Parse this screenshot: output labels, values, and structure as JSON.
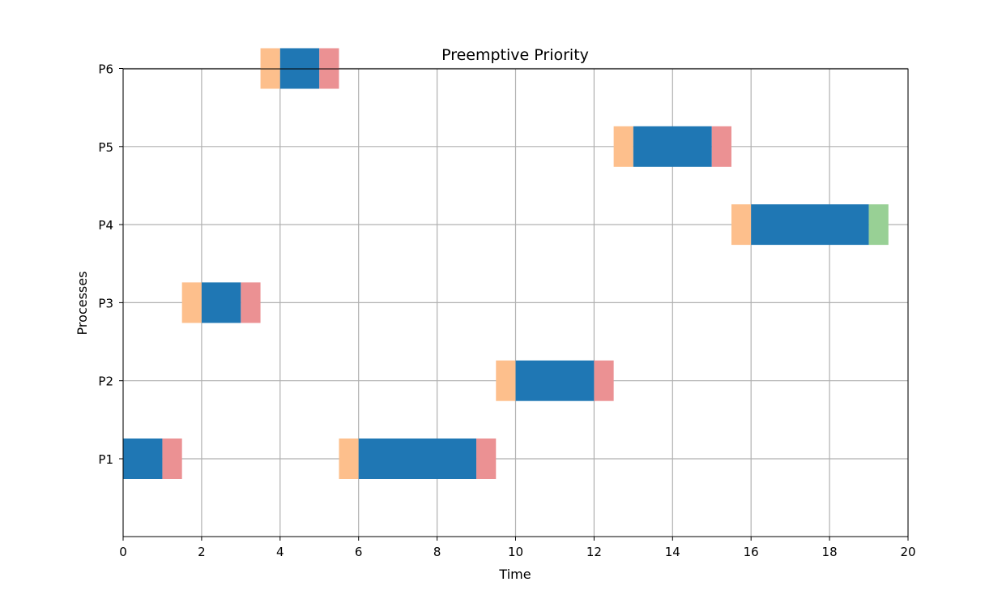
{
  "chart_data": {
    "type": "gantt",
    "title": "Preemptive Priority",
    "xlabel": "Time",
    "ylabel": "Processes",
    "xlim": [
      0,
      20
    ],
    "xticks": [
      0,
      2,
      4,
      6,
      8,
      10,
      12,
      14,
      16,
      18,
      20
    ],
    "categories": [
      "P1",
      "P2",
      "P3",
      "P4",
      "P5",
      "P6"
    ],
    "grid": true,
    "legend": "none",
    "colors": {
      "wait": "#fdbf8c",
      "run": "#1f77b4",
      "switch": "#eb9193",
      "end": "#98d095",
      "grid": "#b0b0b0"
    },
    "segments": [
      {
        "process": "P1",
        "kind": "run",
        "start": 0,
        "end": 1
      },
      {
        "process": "P1",
        "kind": "switch",
        "start": 1,
        "end": 1.5
      },
      {
        "process": "P1",
        "kind": "wait",
        "start": 5.5,
        "end": 6
      },
      {
        "process": "P1",
        "kind": "run",
        "start": 6,
        "end": 9
      },
      {
        "process": "P1",
        "kind": "switch",
        "start": 9,
        "end": 9.5
      },
      {
        "process": "P2",
        "kind": "wait",
        "start": 9.5,
        "end": 10
      },
      {
        "process": "P2",
        "kind": "run",
        "start": 10,
        "end": 12
      },
      {
        "process": "P2",
        "kind": "switch",
        "start": 12,
        "end": 12.5
      },
      {
        "process": "P3",
        "kind": "wait",
        "start": 1.5,
        "end": 2
      },
      {
        "process": "P3",
        "kind": "run",
        "start": 2,
        "end": 3
      },
      {
        "process": "P3",
        "kind": "switch",
        "start": 3,
        "end": 3.5
      },
      {
        "process": "P4",
        "kind": "wait",
        "start": 15.5,
        "end": 16
      },
      {
        "process": "P4",
        "kind": "run",
        "start": 16,
        "end": 19
      },
      {
        "process": "P4",
        "kind": "end",
        "start": 19,
        "end": 19.5
      },
      {
        "process": "P5",
        "kind": "wait",
        "start": 12.5,
        "end": 13
      },
      {
        "process": "P5",
        "kind": "run",
        "start": 13,
        "end": 15
      },
      {
        "process": "P5",
        "kind": "switch",
        "start": 15,
        "end": 15.5
      },
      {
        "process": "P6",
        "kind": "wait",
        "start": 3.5,
        "end": 4
      },
      {
        "process": "P6",
        "kind": "run",
        "start": 4,
        "end": 5
      },
      {
        "process": "P6",
        "kind": "switch",
        "start": 5,
        "end": 5.5
      }
    ]
  }
}
